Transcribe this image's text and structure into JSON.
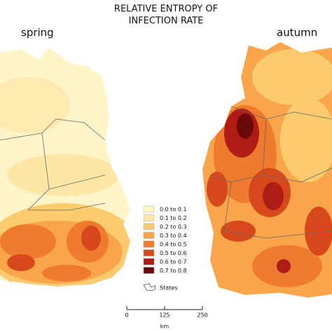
{
  "title_lines": [
    "RELATIVE ENTROPY OF",
    "INFECTION RATE"
  ],
  "maps": [
    {
      "label": "spring"
    },
    {
      "label": "autumn"
    }
  ],
  "legend": {
    "items": [
      {
        "label": "0.0 to 0.1",
        "color": "#fff5c8"
      },
      {
        "label": "0.1 to 0.2",
        "color": "#fde6a6"
      },
      {
        "label": "0.2 to 0.3",
        "color": "#fccb70"
      },
      {
        "label": "0.3 to 0.4",
        "color": "#f9a64b"
      },
      {
        "label": "0.4 to 0.5",
        "color": "#ef7c2e"
      },
      {
        "label": "0.5 to 0.6",
        "color": "#d8481d"
      },
      {
        "label": "0.6 to 0.7",
        "color": "#ae1c15"
      },
      {
        "label": "0.7 to 0.8",
        "color": "#6b0a0a"
      }
    ],
    "states_label": "States"
  },
  "scale_bar": {
    "ticks": [
      0,
      125,
      250
    ],
    "unit": "km"
  }
}
